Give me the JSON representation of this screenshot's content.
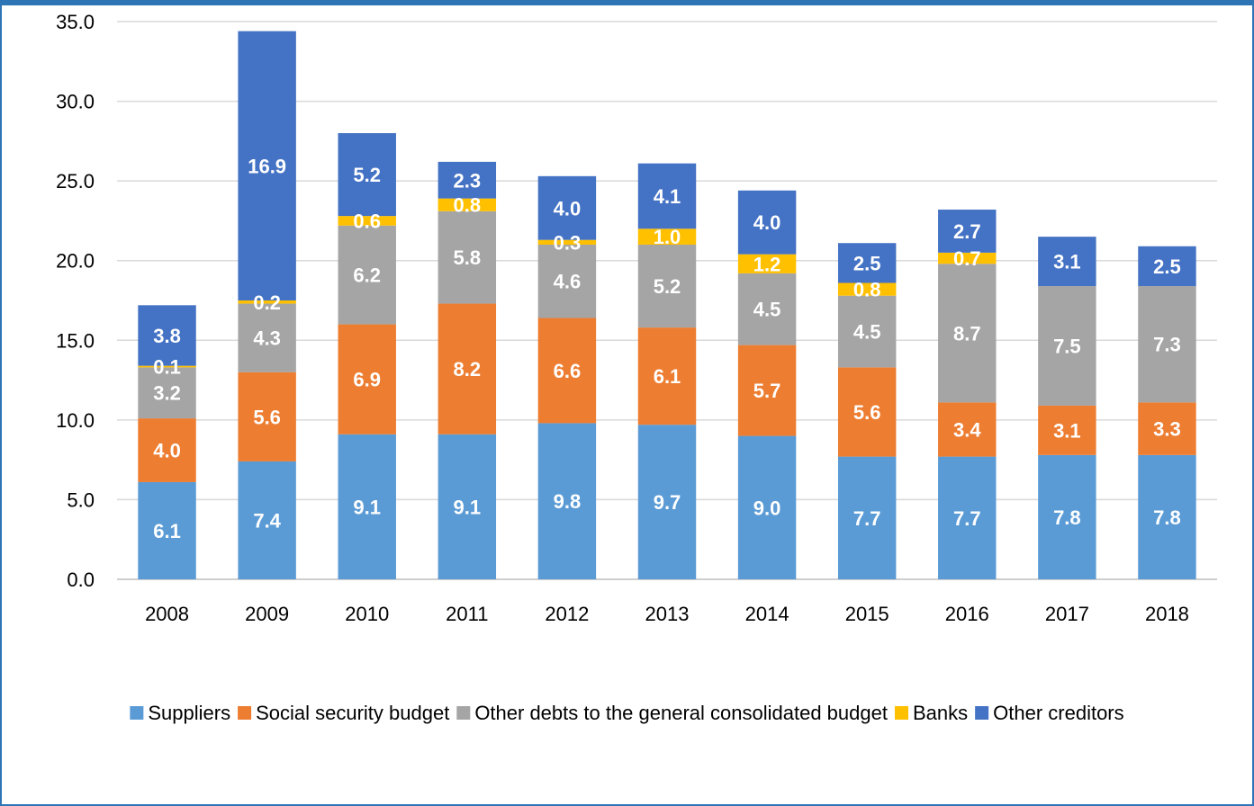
{
  "chart_data": {
    "type": "bar",
    "stacked": true,
    "title": "",
    "xlabel": "",
    "ylabel": "",
    "categories": [
      "2008",
      "2009",
      "2010",
      "2011",
      "2012",
      "2013",
      "2014",
      "2015",
      "2016",
      "2017",
      "2018"
    ],
    "ylim": [
      0,
      35
    ],
    "yticks": [
      "0.0",
      "5.0",
      "10.0",
      "15.0",
      "20.0",
      "25.0",
      "30.0",
      "35.0"
    ],
    "grid": true,
    "legend_position": "bottom",
    "series": [
      {
        "name": "Suppliers",
        "color": "#5B9BD5",
        "label_color": "#ffffff",
        "values": [
          6.1,
          7.4,
          9.1,
          9.1,
          9.8,
          9.7,
          9.0,
          7.7,
          7.7,
          7.8,
          7.8
        ],
        "labels": [
          "6.1",
          "7.4",
          "9.1",
          "9.1",
          "9.8",
          "9.7",
          "9.0",
          "7.7",
          "7.7",
          "7.8",
          "7.8"
        ]
      },
      {
        "name": "Social security budget",
        "color": "#ED7D31",
        "label_color": "#ffffff",
        "values": [
          4.0,
          5.6,
          6.9,
          8.2,
          6.6,
          6.1,
          5.7,
          5.6,
          3.4,
          3.1,
          3.3
        ],
        "labels": [
          "4.0",
          "5.6",
          "6.9",
          "8.2",
          "6.6",
          "6.1",
          "5.7",
          "5.6",
          "3.4",
          "3.1",
          "3.3"
        ]
      },
      {
        "name": "Other debts to the general consolidated budget",
        "color": "#A5A5A5",
        "label_color": "#ffffff",
        "values": [
          3.2,
          4.3,
          6.2,
          5.8,
          4.6,
          5.2,
          4.5,
          4.5,
          8.7,
          7.5,
          7.3
        ],
        "labels": [
          "3.2",
          "4.3",
          "6.2",
          "5.8",
          "4.6",
          "5.2",
          "4.5",
          "4.5",
          "8.7",
          "7.5",
          "7.3"
        ]
      },
      {
        "name": "Banks",
        "color": "#FFC000",
        "label_color": "#ffffff",
        "values": [
          0.1,
          0.2,
          0.6,
          0.8,
          0.3,
          1.0,
          1.2,
          0.8,
          0.7,
          0,
          0
        ],
        "labels": [
          "0.1",
          "0.2",
          "0.6",
          "0.8",
          "0.3",
          "1.0",
          "1.2",
          "0.8",
          "0.7",
          "",
          ""
        ]
      },
      {
        "name": "Other creditors",
        "color": "#4472C4",
        "label_color": "#ffffff",
        "values": [
          3.8,
          16.9,
          5.2,
          2.3,
          4.0,
          4.1,
          4.0,
          2.5,
          2.7,
          3.1,
          2.5
        ],
        "labels": [
          "3.8",
          "16.9",
          "5.2",
          "2.3",
          "4.0",
          "4.1",
          "4.0",
          "2.5",
          "2.7",
          "3.1",
          "2.5"
        ]
      }
    ]
  }
}
